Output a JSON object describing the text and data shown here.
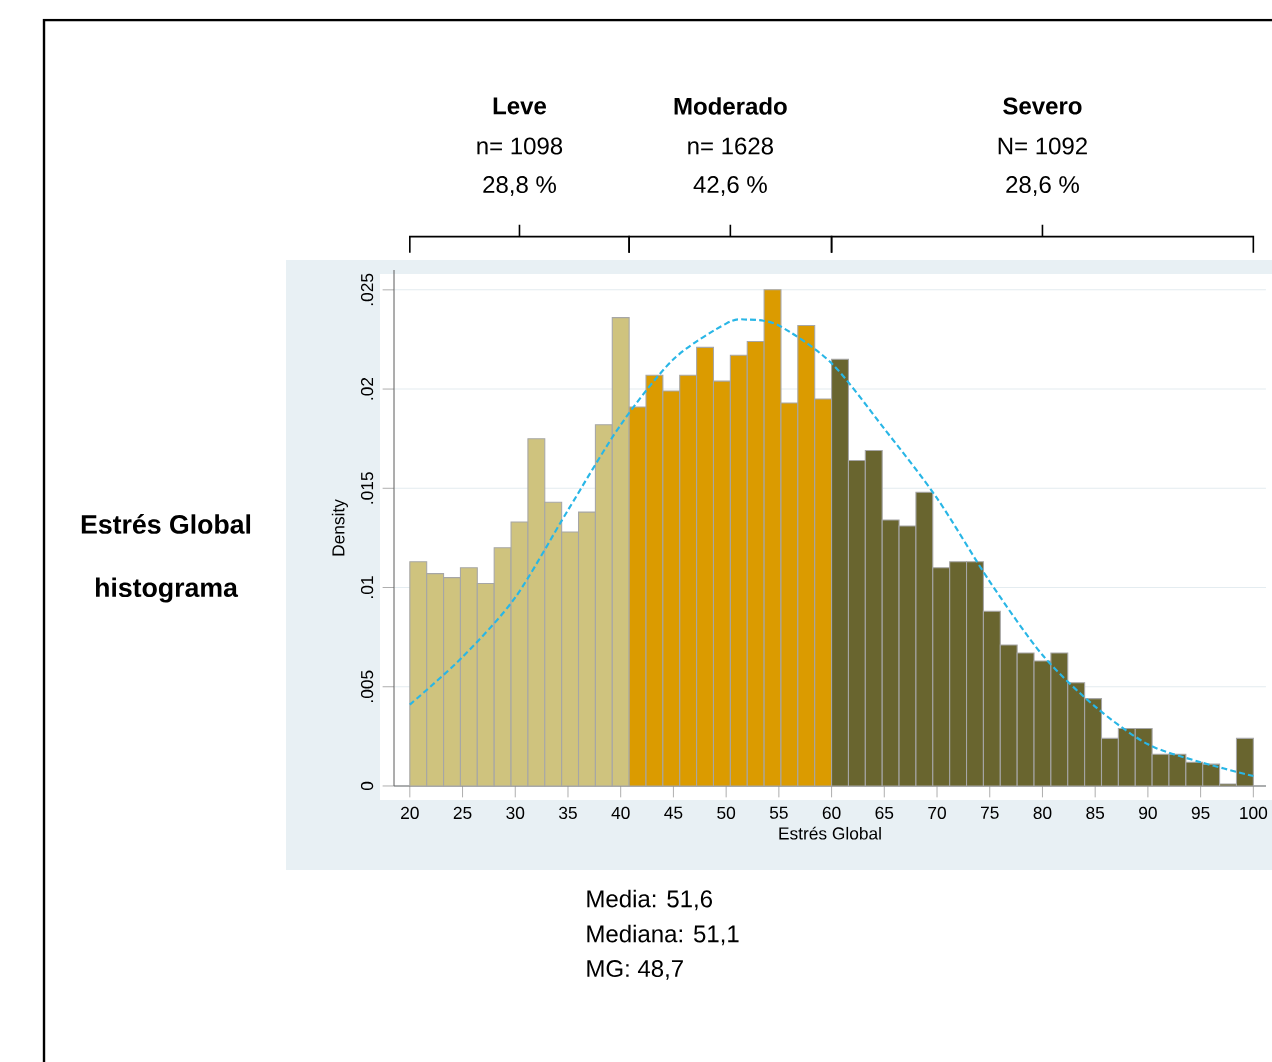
{
  "chart_data": {
    "type": "histogram",
    "title": "Estrés Global",
    "subtitle": "histograma",
    "xlabel": "Estrés Global",
    "ylabel": "Density",
    "series": [
      {
        "color": "#cfc37e",
        "bins": [
          20,
          21.6,
          23.2,
          24.8,
          26.4,
          28,
          29.6,
          31.2,
          32.8,
          34.4,
          36,
          37.6,
          39.2,
          40.8
        ],
        "values": [
          0.0113,
          0.0107,
          0.0105,
          0.011,
          0.0102,
          0.012,
          0.0133,
          0.0175,
          0.0143,
          0.0128,
          0.0138,
          0.0182,
          0.0236
        ]
      },
      {
        "color": "#db9b00",
        "bins": [
          40.8,
          42.4,
          44,
          45.6,
          47.2,
          48.8,
          50.4,
          52,
          53.6,
          55.2,
          56.8,
          58.4,
          60
        ],
        "values": [
          0.0191,
          0.0207,
          0.0199,
          0.0207,
          0.0221,
          0.0204,
          0.0217,
          0.0224,
          0.025,
          0.0193,
          0.0232,
          0.0195
        ]
      },
      {
        "color": "#69652f",
        "bins": [
          60,
          61.6,
          63.2,
          64.8,
          66.4,
          68,
          69.6,
          71.2,
          72.8,
          74.4,
          76,
          77.6,
          79.2,
          80.8,
          82.4,
          84,
          85.6,
          87.2,
          88.8,
          90.4,
          92,
          93.6,
          95.2,
          96.8,
          98.4,
          100
        ],
        "values": [
          0.0215,
          0.0164,
          0.0169,
          0.0134,
          0.0131,
          0.0148,
          0.011,
          0.0113,
          0.0113,
          0.0088,
          0.0071,
          0.0067,
          0.0063,
          0.0067,
          0.0052,
          0.0044,
          0.0024,
          0.0029,
          0.0029,
          0.0016,
          0.0016,
          0.0012,
          0.0011,
          0.0001,
          0.0024
        ]
      },
      {
        "type": "line",
        "color": "#29b6e6",
        "line_style": "dashed",
        "x": [
          20,
          25,
          30,
          35,
          40,
          45,
          50,
          52,
          55,
          60,
          65,
          70,
          75,
          80,
          85,
          90,
          95,
          100
        ],
        "values": [
          0.0041,
          0.0065,
          0.0095,
          0.0139,
          0.0182,
          0.0215,
          0.0233,
          0.0235,
          0.0232,
          0.0213,
          0.018,
          0.0145,
          0.0103,
          0.0066,
          0.004,
          0.0021,
          0.0012,
          0.0005
        ]
      }
    ],
    "annotations": [
      "Leve",
      "n= 1098",
      "28,8 %",
      "Moderado",
      "n= 1628",
      "42,6 %",
      "Severo",
      "N= 1092",
      "28,6 %",
      "Media: 51,6",
      "Mediana: 51,1",
      "MG: 48,7"
    ],
    "xlim": [
      18.5,
      101.2
    ],
    "ylim": [
      0,
      0.026
    ],
    "xticks": [
      20,
      25,
      30,
      35,
      40,
      45,
      50,
      55,
      60,
      65,
      70,
      75,
      80,
      85,
      90,
      95,
      100
    ],
    "yticks": [
      0,
      {
        "value": 0.005,
        "label": ".005"
      },
      {
        "value": 0.01,
        "label": ".01"
      },
      {
        "value": 0.015,
        "label": ".015"
      },
      {
        "value": 0.02,
        "label": ".02"
      },
      {
        "value": 0.025,
        "label": ".025"
      }
    ],
    "grid": "y"
  }
}
